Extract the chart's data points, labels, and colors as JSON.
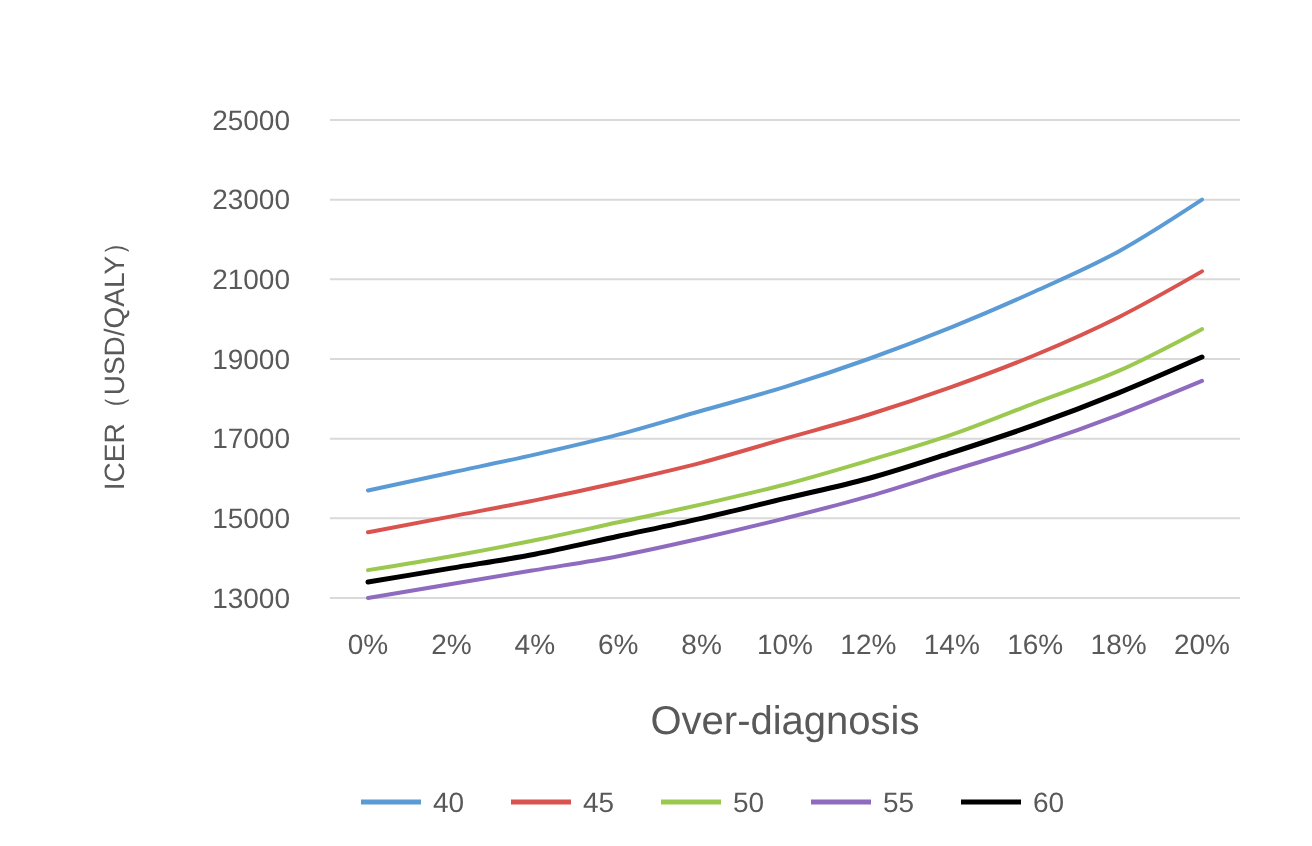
{
  "chart_data": {
    "type": "line",
    "xlabel": "Over-diagnosis",
    "ylabel": "ICER（USD/QALY）",
    "categories": [
      "0%",
      "2%",
      "4%",
      "6%",
      "8%",
      "10%",
      "12%",
      "14%",
      "16%",
      "18%",
      "20%"
    ],
    "series": [
      {
        "name": "40",
        "color": "#5b9bd5",
        "values": [
          15700,
          16150,
          16600,
          17100,
          17700,
          18300,
          19000,
          19800,
          20700,
          21700,
          23000
        ]
      },
      {
        "name": "45",
        "color": "#d9534f",
        "values": [
          14650,
          15050,
          15450,
          15900,
          16400,
          17000,
          17600,
          18300,
          19100,
          20050,
          21200
        ]
      },
      {
        "name": "50",
        "color": "#9bc94f",
        "values": [
          13700,
          14050,
          14450,
          14900,
          15350,
          15850,
          16450,
          17100,
          17900,
          18700,
          19750
        ]
      },
      {
        "name": "55",
        "color": "#8e6bbf",
        "values": [
          13000,
          13350,
          13700,
          14050,
          14500,
          15000,
          15550,
          16200,
          16850,
          17600,
          18450
        ]
      },
      {
        "name": "60",
        "color": "#000000",
        "values": [
          13400,
          13750,
          14100,
          14550,
          15000,
          15500,
          16000,
          16650,
          17350,
          18150,
          19050
        ]
      }
    ],
    "ylim": [
      13000,
      25000
    ],
    "yticks": [
      13000,
      15000,
      17000,
      19000,
      21000,
      23000,
      25000
    ],
    "grid": "y",
    "legend": "bottom",
    "marker": "none",
    "line_style": "solid"
  }
}
